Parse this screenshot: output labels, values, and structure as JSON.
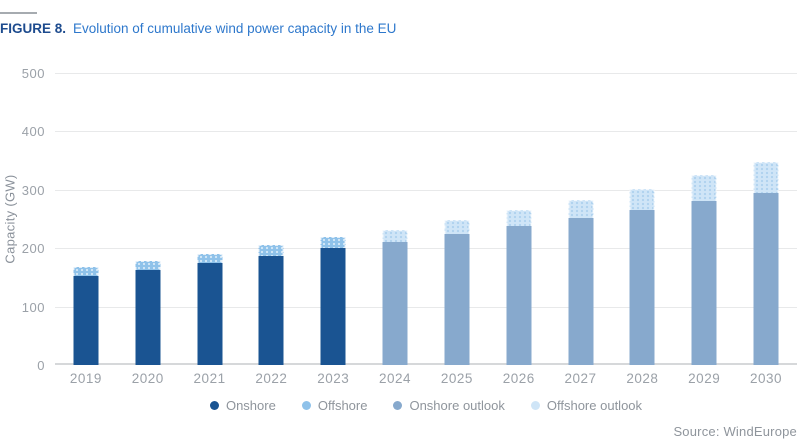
{
  "figure": {
    "label": "FIGURE 8.",
    "title": "Evolution of cumulative wind power capacity in the EU"
  },
  "source": "Source: WindEurope",
  "colors": {
    "title_label": "#1D4B8E",
    "title_text": "#2E78CC",
    "axis_text": "#9BA1A8",
    "grid": "#E8E9EA",
    "axis_line": "#D6D8DA"
  },
  "chart_data": {
    "type": "bar",
    "stacked": true,
    "title": "Evolution of cumulative wind power capacity in the EU",
    "xlabel": "",
    "ylabel": "Capacity (GW)",
    "ylim": [
      0,
      500
    ],
    "yticks": [
      0,
      100,
      200,
      300,
      400,
      500
    ],
    "grid": true,
    "legend_position": "bottom",
    "categories": [
      "2019",
      "2020",
      "2021",
      "2022",
      "2023",
      "2024",
      "2025",
      "2026",
      "2027",
      "2028",
      "2029",
      "2030"
    ],
    "series": [
      {
        "name": "Onshore",
        "color": "#1A5492",
        "pattern": "solid",
        "values": [
          153,
          163,
          174,
          187,
          200,
          null,
          null,
          null,
          null,
          null,
          null,
          null
        ]
      },
      {
        "name": "Offshore",
        "color": "#8FC2EA",
        "pattern": "dots",
        "pattern_dot": "rgba(255,255,255,0.6)",
        "values": [
          15,
          15,
          16,
          18,
          19,
          null,
          null,
          null,
          null,
          null,
          null,
          null
        ]
      },
      {
        "name": "Onshore outlook",
        "color": "#87A9CD",
        "pattern": "solid",
        "values": [
          null,
          null,
          null,
          null,
          null,
          210,
          225,
          238,
          252,
          266,
          281,
          294
        ]
      },
      {
        "name": "Offshore outlook",
        "color": "#CFE5F7",
        "pattern": "dots",
        "pattern_dot": "rgba(150,195,232,0.55)",
        "values": [
          null,
          null,
          null,
          null,
          null,
          21,
          24,
          27,
          30,
          36,
          45,
          53
        ]
      }
    ]
  }
}
